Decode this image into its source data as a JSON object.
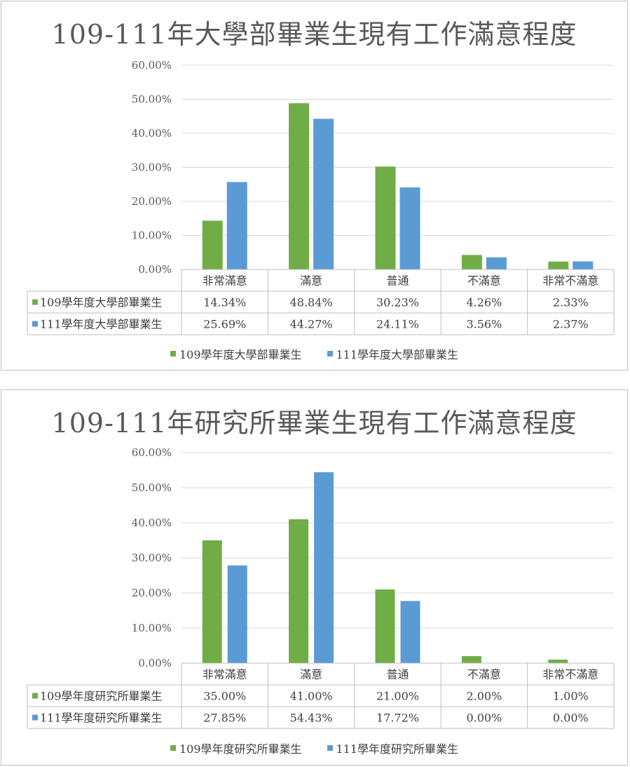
{
  "colors": {
    "series_a": "#70ad47",
    "series_b": "#5b9bd5",
    "grid": "#d9d9d9",
    "border": "#bfbfbf"
  },
  "chart_data": [
    {
      "type": "bar",
      "title": "109-111年大學部畢業生現有工作滿意程度",
      "categories": [
        "非常滿意",
        "滿意",
        "普通",
        "不滿意",
        "非常不滿意"
      ],
      "series": [
        {
          "name": "109學年度大學部畢業生",
          "values": [
            14.34,
            48.84,
            30.23,
            4.26,
            2.33
          ],
          "labels": [
            "14.34%",
            "48.84%",
            "30.23%",
            "4.26%",
            "2.33%"
          ]
        },
        {
          "name": "111學年度大學部畢業生",
          "values": [
            25.69,
            44.27,
            24.11,
            3.56,
            2.37
          ],
          "labels": [
            "25.69%",
            "44.27%",
            "24.11%",
            "3.56%",
            "2.37%"
          ]
        }
      ],
      "yticks": [
        "0.00%",
        "10.00%",
        "20.00%",
        "30.00%",
        "40.00%",
        "50.00%",
        "60.00%"
      ],
      "ylim": [
        0,
        60
      ],
      "grid": true,
      "data_table": true,
      "legend": "bottom"
    },
    {
      "type": "bar",
      "title": "109-111年研究所畢業生現有工作滿意程度",
      "categories": [
        "非常滿意",
        "滿意",
        "普通",
        "不滿意",
        "非常不滿意"
      ],
      "series": [
        {
          "name": "109學年度研究所畢業生",
          "values": [
            35.0,
            41.0,
            21.0,
            2.0,
            1.0
          ],
          "labels": [
            "35.00%",
            "41.00%",
            "21.00%",
            "2.00%",
            "1.00%"
          ]
        },
        {
          "name": "111學年度研究所畢業生",
          "values": [
            27.85,
            54.43,
            17.72,
            0.0,
            0.0
          ],
          "labels": [
            "27.85%",
            "54.43%",
            "17.72%",
            "0.00%",
            "0.00%"
          ]
        }
      ],
      "yticks": [
        "0.00%",
        "10.00%",
        "20.00%",
        "30.00%",
        "40.00%",
        "50.00%",
        "60.00%"
      ],
      "ylim": [
        0,
        60
      ],
      "grid": true,
      "data_table": true,
      "legend": "bottom"
    }
  ]
}
